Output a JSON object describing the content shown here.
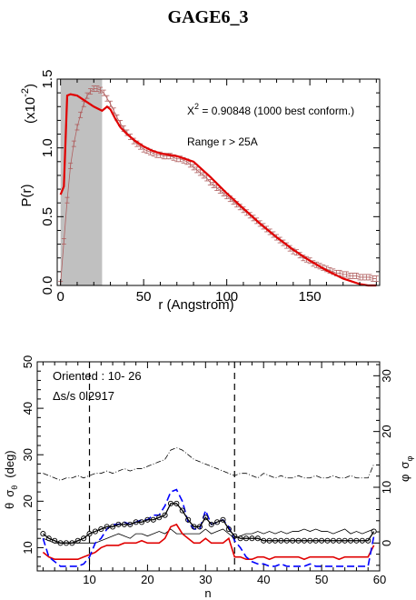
{
  "title": "GAGE6_3",
  "chart_data": [
    {
      "type": "line",
      "xlabel": "r (Angstrom)",
      "ylabel": "P(r)",
      "y_multiplier_label": "(x10",
      "y_multiplier_exp": "-2",
      "xlim": [
        -2,
        192
      ],
      "ylim": [
        0,
        1.5
      ],
      "xticks": [
        0,
        50,
        100,
        150
      ],
      "yticks": [
        0.0,
        0.5,
        1.0,
        1.5
      ],
      "yticklabels": [
        "0.0",
        "0.5",
        "1.0",
        "1.5"
      ],
      "shaded_range": [
        0,
        25
      ],
      "annotation_chi_prefix": "X",
      "annotation_chi_exp": "2",
      "annotation_chi_rest": " = 0.90848 (1000 best conform.)",
      "annotation_range": "Range r >  25A",
      "colors": {
        "fit": "#e00000",
        "data": "#b06060",
        "shade": "#c0c0c0"
      },
      "series": [
        {
          "role": "experimental data with error bars",
          "x": [
            0,
            2,
            4,
            6,
            8,
            10,
            12,
            14,
            16,
            18,
            20,
            22,
            24,
            26,
            28,
            30,
            32,
            34,
            36,
            38,
            40,
            42,
            44,
            46,
            48,
            50,
            52,
            54,
            56,
            58,
            60,
            62,
            64,
            66,
            68,
            70,
            72,
            74,
            76,
            78,
            80,
            82,
            84,
            86,
            88,
            90,
            92,
            94,
            96,
            98,
            100,
            102,
            104,
            106,
            108,
            110,
            112,
            114,
            116,
            118,
            120,
            122,
            124,
            126,
            128,
            130,
            132,
            134,
            136,
            138,
            140,
            142,
            144,
            146,
            148,
            150,
            152,
            154,
            156,
            158,
            160,
            162,
            164,
            166,
            168,
            170,
            172,
            174,
            176,
            178,
            180,
            182,
            184,
            186,
            188,
            190
          ],
          "y": [
            0.01,
            0.32,
            0.62,
            0.87,
            1.03,
            1.15,
            1.24,
            1.32,
            1.38,
            1.41,
            1.43,
            1.43,
            1.42,
            1.4,
            1.36,
            1.32,
            1.27,
            1.22,
            1.18,
            1.14,
            1.11,
            1.08,
            1.05,
            1.03,
            1.01,
            0.99,
            0.98,
            0.97,
            0.96,
            0.95,
            0.95,
            0.94,
            0.94,
            0.94,
            0.93,
            0.92,
            0.92,
            0.91,
            0.9,
            0.88,
            0.86,
            0.84,
            0.82,
            0.8,
            0.78,
            0.75,
            0.73,
            0.71,
            0.69,
            0.67,
            0.65,
            0.63,
            0.61,
            0.59,
            0.57,
            0.55,
            0.53,
            0.51,
            0.49,
            0.47,
            0.45,
            0.43,
            0.41,
            0.39,
            0.37,
            0.35,
            0.33,
            0.31,
            0.29,
            0.27,
            0.25,
            0.24,
            0.22,
            0.2,
            0.19,
            0.18,
            0.16,
            0.15,
            0.14,
            0.13,
            0.12,
            0.11,
            0.1,
            0.09,
            0.09,
            0.08,
            0.08,
            0.07,
            0.07,
            0.07,
            0.06,
            0.06,
            0.06,
            0.06,
            0.05,
            0.05
          ],
          "err": 0.02
        },
        {
          "role": "model fit",
          "x": [
            0,
            2,
            4,
            6,
            10,
            15,
            20,
            25,
            28,
            30,
            33,
            36,
            40,
            45,
            50,
            55,
            60,
            65,
            70,
            75,
            80,
            90,
            100,
            110,
            120,
            130,
            140,
            150,
            160,
            165,
            170,
            175,
            180,
            185,
            190
          ],
          "y": [
            0.66,
            0.72,
            1.38,
            1.39,
            1.38,
            1.34,
            1.3,
            1.27,
            1.3,
            1.28,
            1.21,
            1.15,
            1.1,
            1.05,
            1.01,
            0.98,
            0.96,
            0.95,
            0.94,
            0.92,
            0.9,
            0.79,
            0.67,
            0.56,
            0.45,
            0.35,
            0.26,
            0.18,
            0.11,
            0.08,
            0.05,
            0.03,
            0.01,
            0.0,
            0.0
          ]
        }
      ]
    },
    {
      "type": "line",
      "xlabel": "n",
      "ylabel_left_1": "θ",
      "ylabel_left_2": "σ",
      "ylabel_left_2_sub": "θ",
      "ylabel_left_3": "(deg)",
      "ylabel_right_1": "φ",
      "ylabel_right_2": "σ",
      "ylabel_right_2_sub": "φ",
      "xlim": [
        1,
        60
      ],
      "ylim_left": [
        5,
        50
      ],
      "ylim_right": [
        -5,
        32.5
      ],
      "xticks": [
        10,
        20,
        30,
        40,
        50,
        60
      ],
      "yticks_left": [
        10,
        20,
        30,
        40,
        50
      ],
      "yticks_right": [
        0,
        10,
        20,
        30
      ],
      "vlines": [
        10,
        35
      ],
      "annotation_oriented": "Oriented :  10- 26",
      "annotation_ds": "Δs/s  0l2917",
      "colors": {
        "theta": "#000000",
        "sigma_theta": "#e00000",
        "phi": "#000000",
        "sigma_phi": "#0000ff",
        "sigma_phi_dashdot": "#000000"
      },
      "x": [
        2,
        3,
        4,
        5,
        6,
        7,
        8,
        9,
        10,
        11,
        12,
        13,
        14,
        15,
        16,
        17,
        18,
        19,
        20,
        21,
        22,
        23,
        24,
        25,
        26,
        27,
        28,
        29,
        30,
        31,
        32,
        33,
        34,
        35,
        36,
        37,
        38,
        39,
        40,
        41,
        42,
        43,
        44,
        45,
        46,
        47,
        48,
        49,
        50,
        51,
        52,
        53,
        54,
        55,
        56,
        57,
        58,
        59
      ],
      "series": [
        {
          "name_hidden": "theta",
          "axis": "left",
          "style": "line+circles",
          "y": [
            13,
            12,
            11.5,
            11,
            11,
            11,
            11.5,
            12,
            13,
            13.5,
            14,
            14.5,
            14.5,
            15,
            15,
            15,
            15.5,
            15.5,
            16,
            16,
            16.5,
            17,
            19.5,
            19.5,
            18,
            16,
            14.5,
            14.5,
            16.5,
            15,
            15.5,
            16,
            14,
            12.5,
            12,
            12,
            12,
            12,
            11.5,
            11.5,
            11.5,
            11.5,
            11.5,
            11.5,
            11.5,
            11.5,
            11.5,
            11.5,
            11.5,
            11.5,
            11.5,
            11.5,
            11.5,
            11.5,
            11.5,
            11.5,
            11.5,
            13.5
          ]
        },
        {
          "name_hidden": "sigma_theta",
          "axis": "left",
          "style": "solid red",
          "y": [
            9,
            8,
            7.5,
            7.5,
            7.5,
            7.5,
            7.5,
            8,
            8.5,
            9,
            10,
            10.5,
            10.5,
            10.5,
            11,
            11,
            11,
            11.5,
            11,
            11,
            11,
            12,
            14.5,
            15,
            13,
            12,
            11,
            11,
            12,
            11,
            11,
            11,
            12,
            8,
            8,
            7.5,
            7.5,
            8,
            8,
            7.5,
            8,
            8,
            8,
            8,
            8,
            7.5,
            8,
            8,
            8,
            8,
            8,
            7.5,
            8,
            8,
            8,
            8,
            8,
            10.5
          ]
        },
        {
          "name_hidden": "phi",
          "axis": "left",
          "style": "solid thin black",
          "y": [
            12,
            11.5,
            11,
            11,
            11,
            11,
            11,
            11,
            11,
            11,
            11.5,
            12,
            12.5,
            13,
            12.5,
            12,
            13,
            13,
            12.5,
            13,
            13.5,
            13,
            14,
            13,
            13,
            13,
            13,
            13,
            14,
            13,
            13.5,
            14,
            13,
            12,
            12.5,
            13,
            13,
            13.5,
            13,
            13.5,
            13,
            13.5,
            13,
            13.5,
            13.5,
            14,
            13.5,
            14,
            13.5,
            13.5,
            13,
            13.5,
            14,
            13,
            13.5,
            13,
            13.5,
            14
          ]
        },
        {
          "name_hidden": "sigma_phi",
          "axis": "left",
          "style": "dashed blue",
          "y": [
            12,
            8,
            7,
            6,
            6,
            6,
            6,
            6.5,
            8,
            11,
            12,
            14,
            15,
            15,
            15.5,
            15,
            15.5,
            16,
            16,
            17,
            17,
            19,
            22,
            22.5,
            20,
            15.5,
            14,
            14,
            18,
            15,
            15.5,
            16,
            14.5,
            11.5,
            10,
            8,
            7,
            6.5,
            6.5,
            6,
            6,
            6.5,
            6,
            6,
            6,
            6,
            6.5,
            6,
            6,
            6,
            6,
            6,
            6,
            6,
            6,
            6,
            6,
            12.5
          ]
        },
        {
          "name_hidden": "sigma_phi_dashdot",
          "axis": "left",
          "style": "dash-dot black",
          "y": [
            26,
            25.5,
            25,
            24.5,
            25,
            25,
            25.5,
            25,
            25.5,
            26,
            26,
            26.5,
            26,
            26.5,
            27,
            26.5,
            27,
            27,
            27.5,
            28,
            28.5,
            29,
            31,
            31.5,
            31,
            30,
            29,
            28.5,
            28,
            27.5,
            27,
            26.5,
            26,
            25.5,
            26,
            26,
            25.5,
            25,
            26,
            25.5,
            25,
            25.5,
            25,
            25,
            25.5,
            25,
            25,
            25.5,
            25,
            25,
            25.5,
            25,
            25,
            25.5,
            25,
            25,
            25,
            28
          ]
        }
      ]
    }
  ]
}
